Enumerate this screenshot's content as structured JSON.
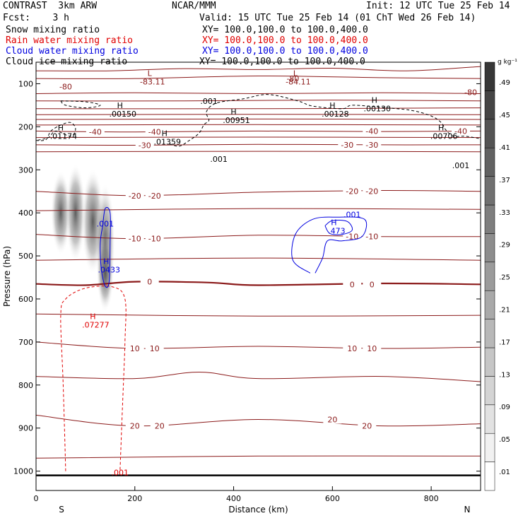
{
  "header": {
    "model": "CONTRAST  3km ARW",
    "center": "NCAR/MMM",
    "init": "Init: 12 UTC Tue 25 Feb 14",
    "fcst": "Fcst:    3 h",
    "valid": "Valid: 15 UTC Tue 25 Feb 14 (01 ChT Wed 26 Feb 14)"
  },
  "legend": [
    {
      "label": "Snow mixing ratio",
      "xy": "",
      "color": "#000000"
    },
    {
      "label": "Rain water mixing ratio",
      "xy": "XY= 100.0,100.0 to 100.0,400.0",
      "color": "#e00000"
    },
    {
      "label": "Cloud water mixing ratio",
      "xy": "XY= 100.0,100.0 to 100.0,400.0",
      "color": "#0000e0"
    },
    {
      "label": "Cloud ice mixing ratio",
      "xy": "XY= 100.0,100.0 to 100.0,400.0",
      "color": "#000000"
    }
  ],
  "snow_xy": "XY= 100.0,100.0 to 100.0,400.0",
  "chart_data": {
    "type": "cross-section",
    "xlabel": "Distance (km)",
    "ylabel": "Pressure (hPa)",
    "xlim": [
      0,
      900
    ],
    "ylim": [
      1045,
      50
    ],
    "xticks": [
      "0",
      "200",
      "400",
      "600",
      "800"
    ],
    "xtick_values": [
      0,
      200,
      400,
      600,
      800
    ],
    "yticks": [
      "100",
      "200",
      "300",
      "400",
      "500",
      "600",
      "700",
      "800",
      "900",
      "1000"
    ],
    "ytick_values": [
      100,
      200,
      300,
      400,
      500,
      600,
      700,
      800,
      900,
      1000
    ],
    "end_labels": {
      "left": "S",
      "right": "N"
    },
    "surface_pressure": 1010,
    "colorbar": {
      "unit": "g kg⁻¹",
      "levels": [
        ".01",
        ".05",
        ".09",
        ".13",
        ".17",
        ".21",
        ".25",
        ".29",
        ".33",
        ".37",
        ".41",
        ".45",
        ".49"
      ]
    },
    "temperature_isotherms": [
      {
        "label": "-80",
        "pts": [
          [
            0,
            70
          ],
          [
            150,
            70
          ],
          [
            300,
            65
          ],
          [
            450,
            67
          ],
          [
            600,
            64
          ],
          [
            750,
            70
          ],
          [
            900,
            60
          ]
        ],
        "labels": [
          [
            60,
            107
          ],
          [
            520,
            88
          ],
          [
            880,
            120
          ]
        ]
      },
      {
        "label": "",
        "pts": [
          [
            0,
            88
          ],
          [
            200,
            88
          ],
          [
            450,
            82
          ],
          [
            700,
            86
          ],
          [
            900,
            88
          ]
        ],
        "labels": []
      },
      {
        "label": "",
        "pts": [
          [
            0,
            123
          ],
          [
            200,
            121
          ],
          [
            450,
            123
          ],
          [
            700,
            121
          ],
          [
            900,
            123
          ]
        ],
        "labels": []
      },
      {
        "label": "",
        "pts": [
          [
            0,
            140
          ],
          [
            300,
            140
          ],
          [
            600,
            138
          ],
          [
            900,
            140
          ]
        ],
        "labels": []
      },
      {
        "label": "",
        "pts": [
          [
            0,
            158
          ],
          [
            450,
            158
          ],
          [
            900,
            156
          ]
        ],
        "labels": []
      },
      {
        "label": "",
        "pts": [
          [
            0,
            172
          ],
          [
            450,
            171
          ],
          [
            900,
            172
          ]
        ],
        "labels": []
      },
      {
        "label": "",
        "pts": [
          [
            0,
            183
          ],
          [
            450,
            182
          ],
          [
            900,
            183
          ]
        ],
        "labels": []
      },
      {
        "label": "",
        "pts": [
          [
            0,
            196
          ],
          [
            450,
            195
          ],
          [
            900,
            196
          ]
        ],
        "labels": []
      },
      {
        "label": "-40",
        "pts": [
          [
            0,
            210
          ],
          [
            200,
            212
          ],
          [
            450,
            210
          ],
          [
            700,
            211
          ],
          [
            900,
            210
          ]
        ],
        "labels": [
          [
            120,
            212
          ],
          [
            240,
            212
          ],
          [
            680,
            210
          ],
          [
            860,
            210
          ]
        ]
      },
      {
        "label": "",
        "pts": [
          [
            0,
            225
          ],
          [
            450,
            224
          ],
          [
            900,
            225
          ]
        ],
        "labels": []
      },
      {
        "label": "-30",
        "pts": [
          [
            0,
            242
          ],
          [
            200,
            243
          ],
          [
            450,
            241
          ],
          [
            700,
            242
          ],
          [
            900,
            242
          ]
        ],
        "labels": [
          [
            220,
            243
          ],
          [
            630,
            242
          ],
          [
            680,
            242
          ]
        ]
      },
      {
        "label": "",
        "pts": [
          [
            0,
            258
          ],
          [
            450,
            257
          ],
          [
            900,
            258
          ]
        ],
        "labels": []
      },
      {
        "label": "-20",
        "pts": [
          [
            0,
            350
          ],
          [
            200,
            360
          ],
          [
            450,
            352
          ],
          [
            700,
            348
          ],
          [
            900,
            350
          ]
        ],
        "labels": [
          [
            200,
            360
          ],
          [
            240,
            360
          ],
          [
            640,
            350
          ],
          [
            680,
            350
          ]
        ]
      },
      {
        "label": "",
        "pts": [
          [
            0,
            395
          ],
          [
            450,
            390
          ],
          [
            900,
            392
          ]
        ],
        "labels": []
      },
      {
        "label": "-10",
        "pts": [
          [
            0,
            450
          ],
          [
            200,
            460
          ],
          [
            450,
            452
          ],
          [
            700,
            455
          ],
          [
            900,
            455
          ]
        ],
        "labels": [
          [
            200,
            460
          ],
          [
            240,
            460
          ],
          [
            640,
            455
          ],
          [
            680,
            455
          ]
        ]
      },
      {
        "label": "",
        "pts": [
          [
            0,
            510
          ],
          [
            450,
            505
          ],
          [
            900,
            510
          ]
        ],
        "labels": []
      },
      {
        "label": "0",
        "pts": [
          [
            0,
            565
          ],
          [
            100,
            568
          ],
          [
            200,
            560
          ],
          [
            350,
            562
          ],
          [
            450,
            568
          ],
          [
            700,
            564
          ],
          [
            900,
            566
          ]
        ],
        "labels": [
          [
            230,
            560
          ],
          [
            640,
            566
          ],
          [
            680,
            566
          ]
        ],
        "bold": true
      },
      {
        "label": "",
        "pts": [
          [
            0,
            635
          ],
          [
            450,
            640
          ],
          [
            900,
            638
          ]
        ],
        "labels": []
      },
      {
        "label": "10",
        "pts": [
          [
            0,
            700
          ],
          [
            200,
            715
          ],
          [
            450,
            710
          ],
          [
            700,
            715
          ],
          [
            900,
            712
          ]
        ],
        "labels": [
          [
            200,
            715
          ],
          [
            240,
            715
          ],
          [
            640,
            715
          ],
          [
            680,
            715
          ]
        ]
      },
      {
        "label": "",
        "pts": [
          [
            0,
            780
          ],
          [
            200,
            785
          ],
          [
            330,
            770
          ],
          [
            450,
            785
          ],
          [
            700,
            780
          ],
          [
            900,
            792
          ]
        ],
        "labels": []
      },
      {
        "label": "20",
        "pts": [
          [
            0,
            870
          ],
          [
            200,
            895
          ],
          [
            450,
            880
          ],
          [
            700,
            895
          ],
          [
            900,
            890
          ]
        ],
        "labels": [
          [
            200,
            895
          ],
          [
            250,
            895
          ],
          [
            600,
            880
          ],
          [
            670,
            895
          ]
        ]
      },
      {
        "label": "",
        "pts": [
          [
            0,
            970
          ],
          [
            450,
            965
          ],
          [
            900,
            965
          ]
        ],
        "labels": []
      }
    ],
    "cloud_ice_contour": {
      "value": ".001"
    },
    "cloud_ice_labels": [
      {
        "text": ".001",
        "x": 350,
        "p": 140
      },
      {
        "text": ".001",
        "x": 370,
        "p": 275
      },
      {
        "text": ".001",
        "x": 860,
        "p": 290
      }
    ],
    "rain_contour": {
      "value": ".001"
    },
    "rain_labels": [
      {
        "text": ".001",
        "x": 170,
        "p": 1003
      }
    ],
    "cloud_water_contours": [
      {
        "value": ".001",
        "label_x": 640,
        "label_p": 404
      },
      {
        "value": ".001",
        "label_x": 140,
        "label_p": 425
      }
    ],
    "extrema": [
      {
        "type": "L",
        "value": "-83.11",
        "x": 230,
        "p": 85,
        "color": "#8b1a1a"
      },
      {
        "type": "L",
        "value": "-84.11",
        "x": 525,
        "p": 85,
        "color": "#8b1a1a"
      },
      {
        "type": "H",
        "value": ".00150",
        "x": 170,
        "p": 160,
        "color": "#000000"
      },
      {
        "type": "H",
        "value": ".00951",
        "x": 400,
        "p": 175,
        "color": "#000000"
      },
      {
        "type": "H",
        "value": ".00128",
        "x": 600,
        "p": 160,
        "color": "#000000"
      },
      {
        "type": "H",
        "value": ".00130",
        "x": 685,
        "p": 148,
        "color": "#000000"
      },
      {
        "type": "H",
        "value": ".01174",
        "x": 50,
        "p": 212,
        "color": "#000000"
      },
      {
        "type": "H",
        "value": ".01359",
        "x": 260,
        "p": 225,
        "color": "#000000"
      },
      {
        "type": "H",
        "value": ".00706",
        "x": 820,
        "p": 212,
        "color": "#000000"
      },
      {
        "type": "H",
        "value": ".473",
        "x": 603,
        "p": 432,
        "color": "#0000e0"
      },
      {
        "type": "H",
        "value": ".0433",
        "x": 142,
        "p": 522,
        "color": "#0000e0"
      },
      {
        "type": "H",
        "value": ".07277",
        "x": 115,
        "p": 650,
        "color": "#e00000"
      }
    ]
  }
}
